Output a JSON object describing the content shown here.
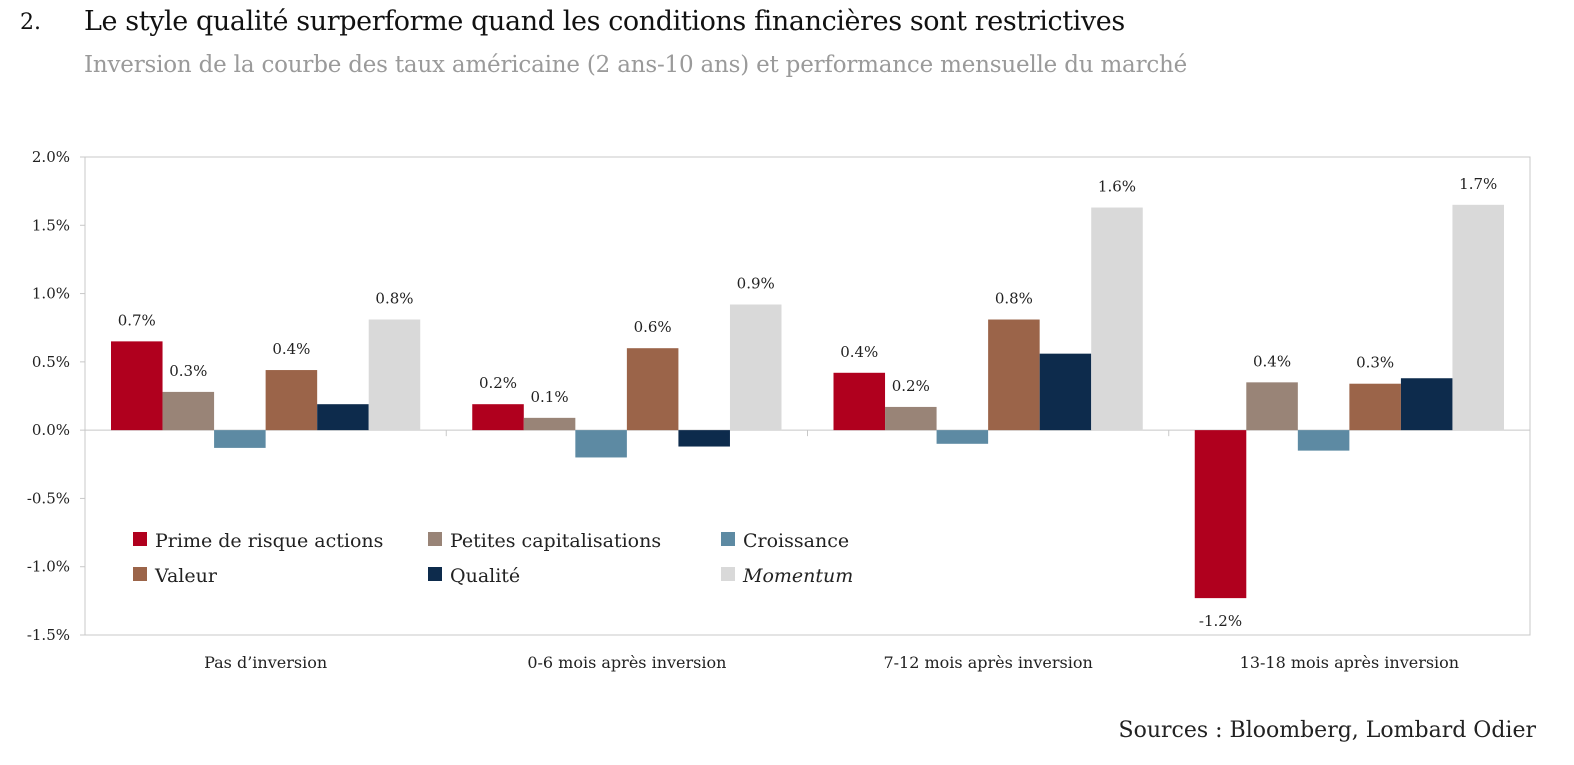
{
  "header": {
    "number": "2.",
    "title": "Le style qualité surperforme quand les conditions financières sont restrictives",
    "subtitle": "Inversion de la courbe des taux américaine (2 ans-10 ans) et performance mensuelle du marché"
  },
  "source": "Sources : Bloomberg, Lombard Odier",
  "chart_data": {
    "type": "bar",
    "categories": [
      "Pas d’inversion",
      "0-6 mois après inversion",
      "7-12 mois après inversion",
      "13-18 mois après inversion"
    ],
    "y_ticks": [
      "2.0%",
      "1.5%",
      "1.0%",
      "0.5%",
      "0.0%",
      "-0.5%",
      "-1.0%",
      "-1.5%"
    ],
    "ylim": [
      -1.5,
      2.0
    ],
    "grid": false,
    "legend_position": "lower-left",
    "series": [
      {
        "name": "Prime de risque actions",
        "color": "#b0001e",
        "italic": false,
        "values": [
          0.65,
          0.19,
          0.42,
          -1.23
        ],
        "labels": [
          "0.7%",
          "0.2%",
          "0.4%",
          "-1.2%"
        ]
      },
      {
        "name": "Petites capitalisations",
        "color": "#998477",
        "italic": false,
        "values": [
          0.28,
          0.09,
          0.17,
          0.35
        ],
        "labels": [
          "0.3%",
          "0.1%",
          "0.2%",
          "0.4%"
        ]
      },
      {
        "name": "Croissance",
        "color": "#5d8aa3",
        "italic": false,
        "values": [
          -0.13,
          -0.2,
          -0.1,
          -0.15
        ],
        "labels": [
          "",
          "",
          "",
          ""
        ]
      },
      {
        "name": "Valeur",
        "color": "#9b6449",
        "italic": false,
        "values": [
          0.44,
          0.6,
          0.81,
          0.34
        ],
        "labels": [
          "0.4%",
          "0.6%",
          "0.8%",
          "0.3%"
        ]
      },
      {
        "name": "Qualité",
        "color": "#0d2b4c",
        "italic": false,
        "values": [
          0.19,
          -0.12,
          0.56,
          0.38
        ],
        "labels": [
          "",
          "",
          "",
          ""
        ]
      },
      {
        "name": "Momentum",
        "color": "#d9d9d9",
        "italic": true,
        "values": [
          0.81,
          0.92,
          1.63,
          1.65
        ],
        "labels": [
          "0.8%",
          "0.9%",
          "1.6%",
          "1.7%"
        ]
      }
    ]
  }
}
